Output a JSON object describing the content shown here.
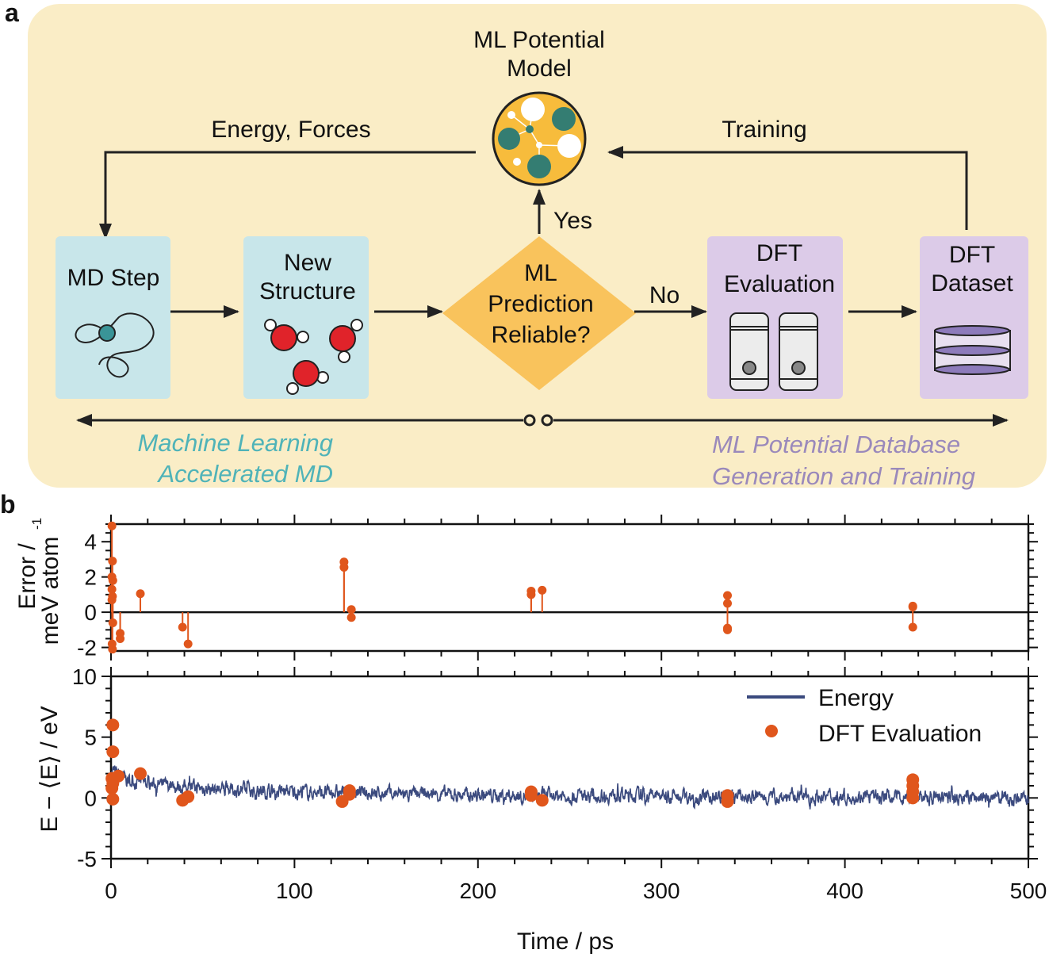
{
  "panel_a": {
    "label": "a",
    "model_title": [
      "ML Potential",
      "Model"
    ],
    "energy_forces": "Energy, Forces",
    "training": "Training",
    "md_step": "MD Step",
    "new_structure": [
      "New",
      "Structure"
    ],
    "decision": [
      "ML",
      "Prediction",
      "Reliable?"
    ],
    "yes": "Yes",
    "no": "No",
    "dft_evaluation": [
      "DFT",
      "Evaluation"
    ],
    "dft_dataset": [
      "DFT",
      "Dataset"
    ],
    "left_caption": [
      "Machine Learning",
      "Accelerated MD"
    ],
    "right_caption": [
      "ML Potential Database",
      "Generation and Training"
    ],
    "colors": {
      "background": "#faedc6",
      "md_boxes": "#c8e6ea",
      "dft_boxes": "#dccbe8",
      "decision": "#f9c35c",
      "teal": "#4fb3b8",
      "purple": "#9a89bb"
    }
  },
  "panel_b": {
    "label": "b"
  },
  "chart_data": [
    {
      "type": "scatter",
      "style": "stem",
      "ylabel": [
        "Error /",
        "meV atom",
        "-1"
      ],
      "xlim": [
        0,
        500
      ],
      "ylim": [
        -2.2,
        5
      ],
      "yticks": [
        "4",
        "2",
        "0",
        "-2"
      ],
      "ytick_values": [
        4,
        2,
        0,
        -2
      ],
      "color": "#e0561c",
      "points": [
        [
          0.5,
          4.9
        ],
        [
          0.8,
          2.9
        ],
        [
          0.5,
          2.0
        ],
        [
          1,
          1.8
        ],
        [
          0.5,
          1.3
        ],
        [
          0.8,
          0.9
        ],
        [
          0.5,
          0.7
        ],
        [
          1,
          -0.6
        ],
        [
          0.6,
          -1.8
        ],
        [
          0.8,
          -2.1
        ],
        [
          5,
          -1.2
        ],
        [
          5,
          -1.5
        ],
        [
          16,
          1.05
        ],
        [
          39,
          -0.85
        ],
        [
          42,
          -1.8
        ],
        [
          127,
          2.85
        ],
        [
          127,
          2.55
        ],
        [
          131,
          0.15
        ],
        [
          131,
          -0.3
        ],
        [
          229,
          1.2
        ],
        [
          229,
          1.0
        ],
        [
          235,
          1.25
        ],
        [
          336,
          0.95
        ],
        [
          336,
          0.5
        ],
        [
          336,
          -0.9
        ],
        [
          336,
          -1.0
        ],
        [
          437,
          0.35
        ],
        [
          437,
          0.3
        ],
        [
          437,
          -0.85
        ]
      ]
    },
    {
      "type": "line",
      "ylabel": "E − ⟨E⟩ / eV",
      "xlabel": "Time / ps",
      "xlim": [
        0,
        500
      ],
      "ylim": [
        -5,
        10
      ],
      "xticks": [
        "0",
        "100",
        "200",
        "300",
        "400",
        "500"
      ],
      "xtick_values": [
        0,
        100,
        200,
        300,
        400,
        500
      ],
      "yticks": [
        "10",
        "5",
        "0",
        "-5"
      ],
      "ytick_values": [
        10,
        5,
        0,
        -5
      ],
      "legend": "top-right",
      "series": [
        {
          "name": "Energy",
          "color": "#3b4a7e",
          "x": [
            0,
            5,
            10,
            20,
            30,
            40,
            50,
            60,
            80,
            100,
            120,
            140,
            160,
            180,
            200,
            220,
            240,
            260,
            280,
            300,
            320,
            340,
            360,
            380,
            400,
            420,
            440,
            460,
            480,
            500
          ],
          "y_mean": [
            2.3,
            1.8,
            1.4,
            1.2,
            1.0,
            0.9,
            0.8,
            0.7,
            0.6,
            0.5,
            0.4,
            0.4,
            0.3,
            0.3,
            0.2,
            0.2,
            0.2,
            0.2,
            0.2,
            0.2,
            0.1,
            0.1,
            0.1,
            0.1,
            0.1,
            0.1,
            0.1,
            0.0,
            0.0,
            0.0
          ]
        },
        {
          "name": "DFT Evaluation",
          "color": "#e0561c",
          "points": [
            [
              1,
              6.0
            ],
            [
              1,
              3.8
            ],
            [
              0.5,
              1.6
            ],
            [
              0.5,
              0.8
            ],
            [
              1,
              1.2
            ],
            [
              1,
              -0.1
            ],
            [
              4,
              1.8
            ],
            [
              16,
              2.0
            ],
            [
              39,
              -0.2
            ],
            [
              42,
              0.1
            ],
            [
              126,
              -0.3
            ],
            [
              130,
              0.3
            ],
            [
              130,
              0.6
            ],
            [
              229,
              0.5
            ],
            [
              229,
              0.2
            ],
            [
              235,
              -0.2
            ],
            [
              336,
              0.2
            ],
            [
              336,
              -0.3
            ],
            [
              437,
              1.5
            ],
            [
              437,
              1.0
            ],
            [
              437,
              0.5
            ],
            [
              437,
              0.0
            ]
          ]
        }
      ]
    }
  ]
}
